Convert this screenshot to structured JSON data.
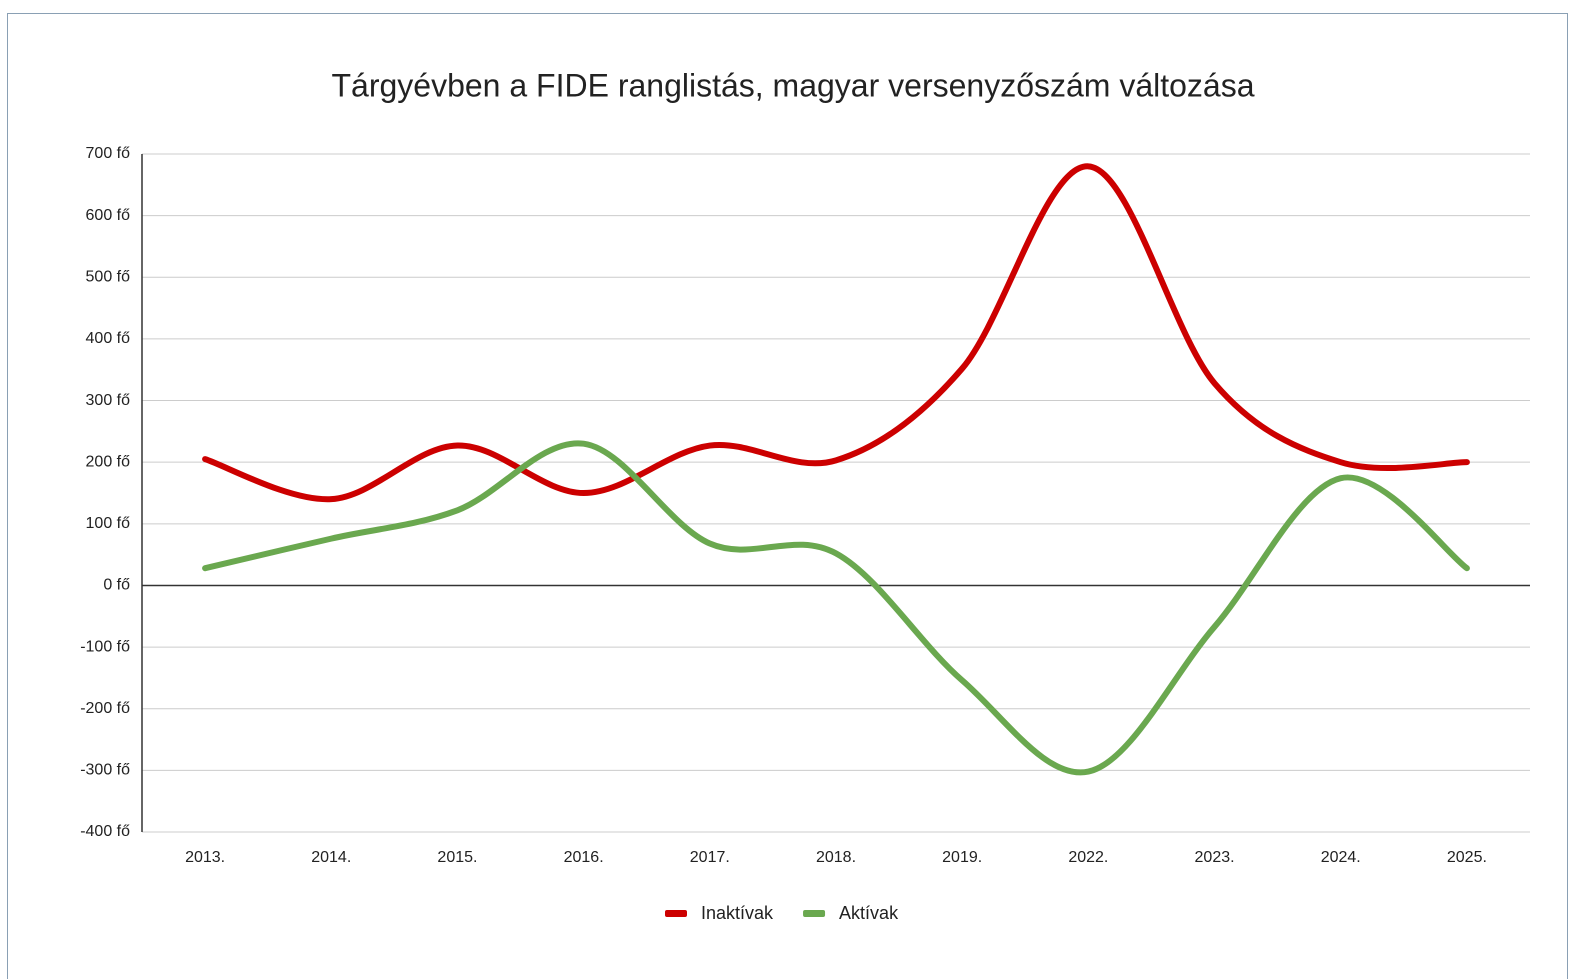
{
  "chart_data": {
    "type": "line",
    "title": "Tárgyévben a FIDE ranglistás, magyar versenyzőszám változása",
    "categories": [
      "2013.",
      "2014.",
      "2015.",
      "2016.",
      "2017.",
      "2018.",
      "2019.",
      "2022.",
      "2023.",
      "2024.",
      "2025."
    ],
    "series": [
      {
        "name": "Inaktívak",
        "color": "#cc0000",
        "values": [
          205,
          140,
          227,
          150,
          227,
          203,
          352,
          680,
          328,
          200,
          200
        ]
      },
      {
        "name": "Aktívak",
        "color": "#6aa84f",
        "values": [
          28,
          76,
          122,
          230,
          68,
          52,
          -154,
          -302,
          -67,
          174,
          28
        ]
      }
    ],
    "ylim": [
      -400,
      700
    ],
    "yticks": [
      {
        "value": -400,
        "label": "-400 fő"
      },
      {
        "value": -300,
        "label": "-300 fő"
      },
      {
        "value": -200,
        "label": "-200 fő"
      },
      {
        "value": -100,
        "label": "-100 fő"
      },
      {
        "value": 0,
        "label": "0 fő"
      },
      {
        "value": 100,
        "label": "100 fő"
      },
      {
        "value": 200,
        "label": "200 fő"
      },
      {
        "value": 300,
        "label": "300 fő"
      },
      {
        "value": 400,
        "label": "400 fő"
      },
      {
        "value": 500,
        "label": "500 fő"
      },
      {
        "value": 600,
        "label": "600 fő"
      },
      {
        "value": 700,
        "label": "700 fő"
      }
    ],
    "grid": true,
    "smooth": true,
    "legend": "bottom"
  }
}
